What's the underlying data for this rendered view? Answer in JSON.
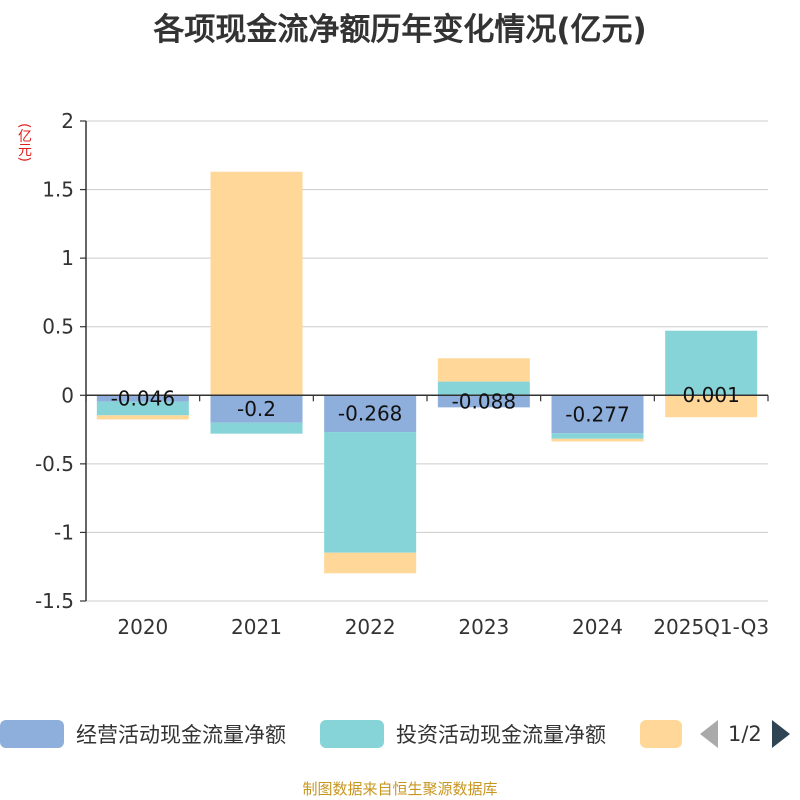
{
  "title": "各项现金流净额历年变化情况(亿元)",
  "unit_label": "(亿元)",
  "source": "制图数据来自恒生聚源数据库",
  "legend": {
    "items": [
      {
        "label": "经营活动现金流量净额",
        "color": "#8eaedb"
      },
      {
        "label": "投资活动现金流量净额",
        "color": "#86d4d8"
      },
      {
        "label": "",
        "color": "#ffd899"
      }
    ],
    "page": "1/2"
  },
  "chart_data": {
    "type": "bar",
    "stacked": true,
    "title": "各项现金流净额历年变化情况(亿元)",
    "ylabel": "(亿元)",
    "ylim": [
      -1.5,
      2
    ],
    "yticks": [
      2,
      1.5,
      1,
      0.5,
      0,
      -0.5,
      -1,
      -1.5
    ],
    "ytick_labels": [
      "2",
      "1.5",
      "1",
      "0.5",
      "0",
      "-0.5",
      "-1",
      "-1.5"
    ],
    "categories": [
      "2020",
      "2021",
      "2022",
      "2023",
      "2024",
      "2025Q1-Q3"
    ],
    "series": [
      {
        "name": "经营活动现金流量净额",
        "color": "#8eaedb",
        "values": [
          -0.046,
          -0.2,
          -0.268,
          -0.088,
          -0.277,
          0.001
        ]
      },
      {
        "name": "投资活动现金流量净额",
        "color": "#86d4d8",
        "values": [
          -0.1,
          -0.08,
          -0.88,
          0.1,
          -0.04,
          0.47
        ]
      },
      {
        "name": "",
        "color": "#ffd899",
        "values": [
          -0.03,
          1.63,
          -0.15,
          0.17,
          -0.02,
          -0.16
        ]
      }
    ],
    "data_labels": [
      "-0.046",
      "-0.2",
      "-0.268",
      "-0.088",
      "-0.277",
      "0.001"
    ]
  }
}
